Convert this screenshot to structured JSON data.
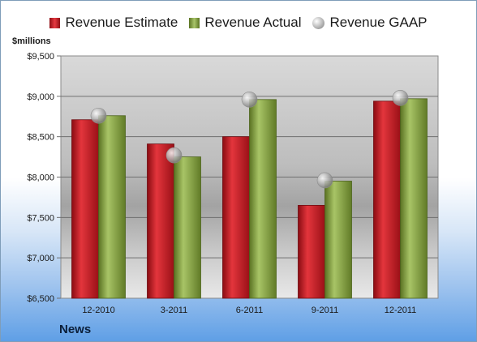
{
  "chart_data": {
    "type": "bar",
    "categories": [
      "12-2010",
      "3-2011",
      "6-2011",
      "9-2011",
      "12-2011"
    ],
    "series": [
      {
        "name": "Revenue Estimate",
        "values": [
          8710,
          8410,
          8500,
          7650,
          8940
        ]
      },
      {
        "name": "Revenue Actual",
        "values": [
          8760,
          8250,
          8960,
          7950,
          8970
        ]
      },
      {
        "name": "Revenue GAAP",
        "values": [
          8760,
          8270,
          8960,
          7960,
          8980
        ]
      }
    ],
    "ylabel": "$millions",
    "ylim": [
      6500,
      9500
    ],
    "yticks": [
      "$6,500",
      "$7,000",
      "$7,500",
      "$8,000",
      "$8,500",
      "$9,000",
      "$9,500"
    ],
    "ytick_values": [
      6500,
      7000,
      7500,
      8000,
      8500,
      9000,
      9500
    ],
    "footer": "News",
    "legend_position": "top",
    "grid": true,
    "colors": {
      "estimate": "#c0181f",
      "actual": "#8fae4a",
      "gaap": "#c8c8c8"
    }
  }
}
